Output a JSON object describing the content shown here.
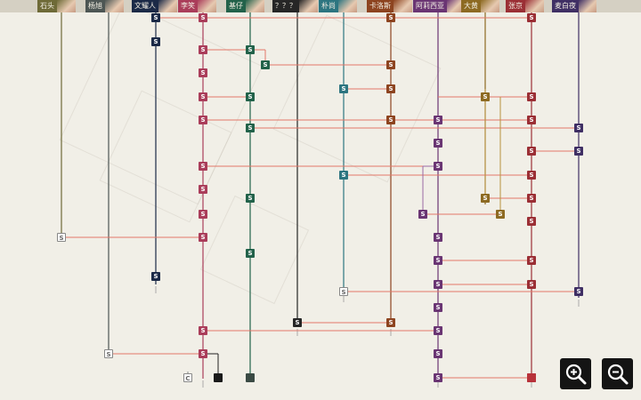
{
  "tabs": [
    {
      "label": "石头",
      "color": "#6e6a37"
    },
    {
      "label": "杨旭",
      "color": "#4d5654"
    },
    {
      "label": "文耀人",
      "color": "#1b2a47"
    },
    {
      "label": "李笑",
      "color": "#aa3d5a"
    },
    {
      "label": "基仔",
      "color": "#22624a"
    },
    {
      "label": "？？？",
      "color": "#262626"
    },
    {
      "label": "朴尚",
      "color": "#2d7580"
    },
    {
      "label": "卡洛斯",
      "color": "#8d4420"
    },
    {
      "label": "阿莉西亚",
      "color": "#6a3573"
    },
    {
      "label": "大黄",
      "color": "#8d6a22"
    },
    {
      "label": "张京",
      "color": "#9b2f35"
    },
    {
      "label": "麦白夜",
      "color": "#3f2f64"
    }
  ],
  "node_label": "S",
  "outline_node_label": "S",
  "c_node_label": "C",
  "colors": {
    "connector": "#e27768",
    "background": "#f1efe7"
  },
  "icons": {
    "zoom_in": "zoom-in-icon",
    "zoom_out": "zoom-out-icon",
    "lock": "lock-icon"
  }
}
